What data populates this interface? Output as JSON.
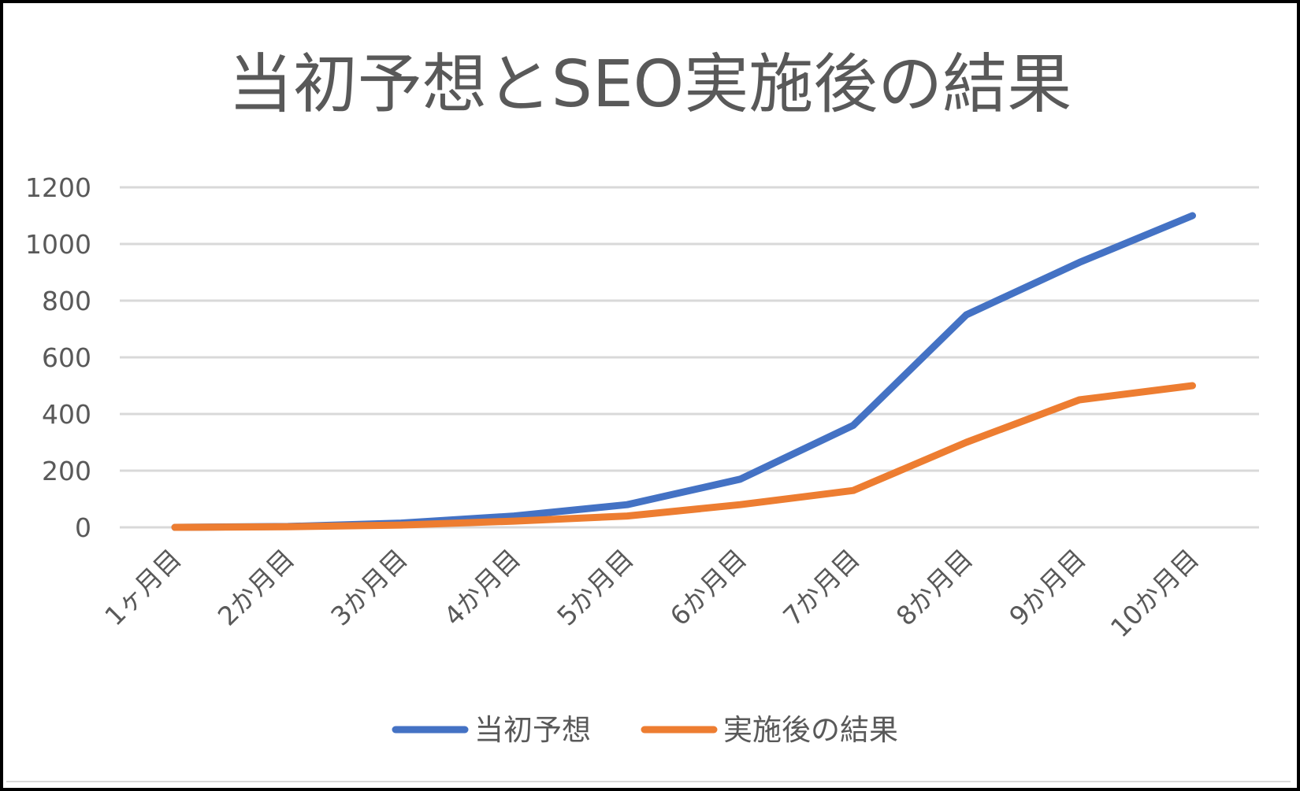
{
  "chart_data": {
    "type": "line",
    "title": "当初予想とSEO実施後の結果",
    "xlabel": "",
    "ylabel": "",
    "categories": [
      "1ヶ月目",
      "2か月目",
      "3か月目",
      "4か月目",
      "5か月目",
      "6か月目",
      "7か月目",
      "8か月目",
      "9か月目",
      "10か月目"
    ],
    "ylim": [
      0,
      1200
    ],
    "yticks": [
      "0",
      "200",
      "400",
      "600",
      "800",
      "1000",
      "1200"
    ],
    "grid": true,
    "legend_position": "bottom",
    "series": [
      {
        "name": "当初予想",
        "color": "#4472C4",
        "values": [
          0,
          3,
          15,
          40,
          80,
          170,
          360,
          750,
          935,
          1100
        ]
      },
      {
        "name": "実施後の結果",
        "color": "#ED7D31",
        "values": [
          0,
          2,
          8,
          22,
          40,
          80,
          130,
          300,
          450,
          500
        ]
      }
    ]
  }
}
